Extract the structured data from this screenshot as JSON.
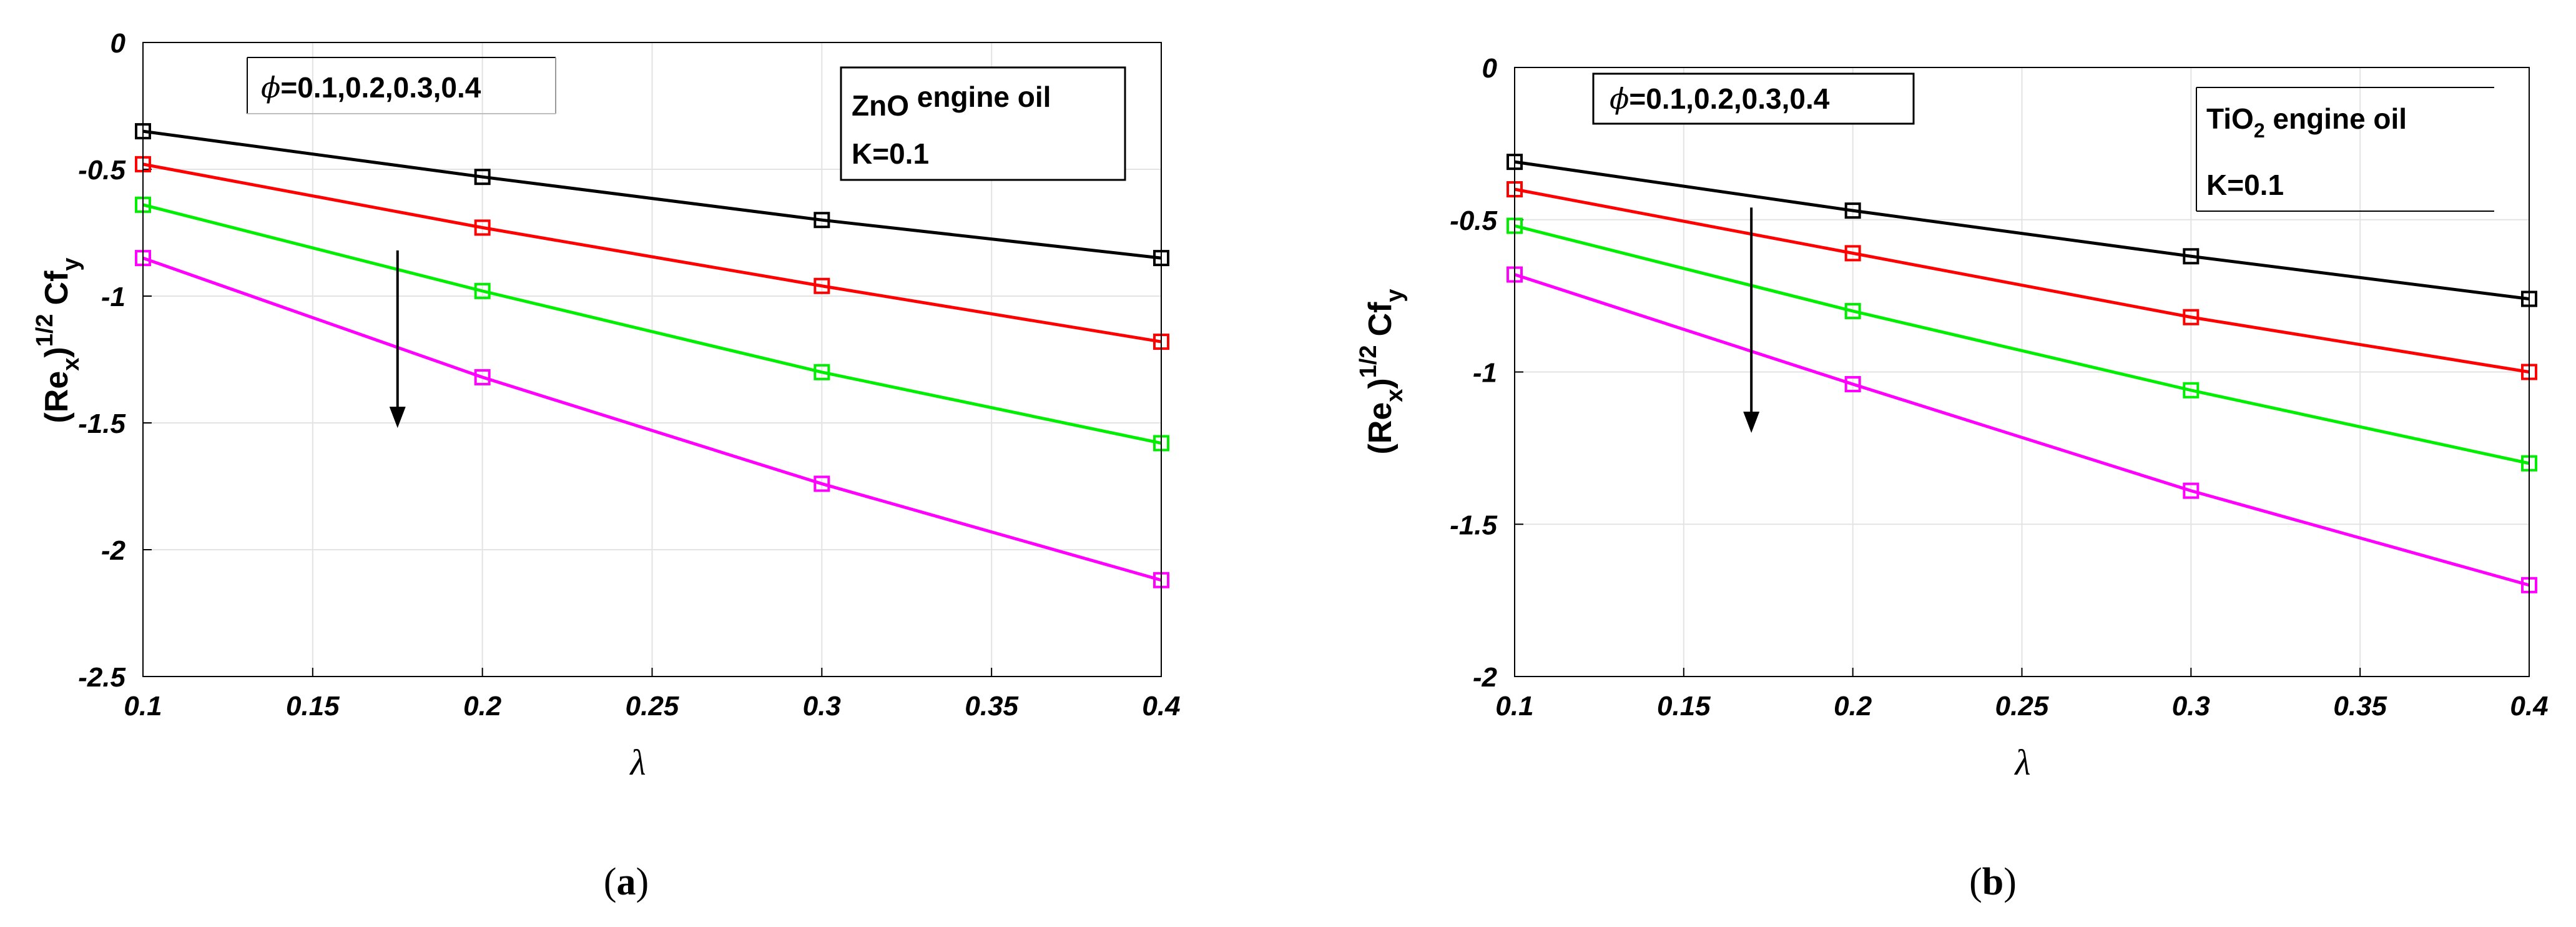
{
  "colors": {
    "series": [
      "#000000",
      "#ff0000",
      "#00ee00",
      "#ff00ff"
    ]
  },
  "chart_data": [
    {
      "type": "line",
      "panel_label": "a",
      "xlabel": "λ",
      "ylabel": "(Re_x)^1/2 Cf_y",
      "ylabel_parts": {
        "open": "(Re",
        "sub1": "x",
        "close": ")",
        "exp": "1/2",
        "cf": "Cf",
        "sub2": "y"
      },
      "x": [
        0.1,
        0.2,
        0.3,
        0.4
      ],
      "xlim": [
        0.1,
        0.4
      ],
      "ylim": [
        -2.5,
        0
      ],
      "xticks": [
        "0.1",
        "0.15",
        "0.2",
        "0.25",
        "0.3",
        "0.35",
        "0.4"
      ],
      "yticks": [
        "0",
        "-0.5",
        "-1",
        "-1.5",
        "-2",
        "-2.5"
      ],
      "arrow": {
        "x": 0.175,
        "y_from": -0.82,
        "y_to": -1.52
      },
      "phi_label": {
        "symbol": "ϕ",
        "text": "=0.1,0.2,0.3,0.4"
      },
      "info": {
        "prefix": "ZnO",
        "sub": "",
        "rest": " engine oil",
        "line2": "K=0.1"
      },
      "series": [
        {
          "name": "ϕ=0.1",
          "values": [
            -0.35,
            -0.53,
            -0.7,
            -0.85
          ]
        },
        {
          "name": "ϕ=0.2",
          "values": [
            -0.48,
            -0.73,
            -0.96,
            -1.18
          ]
        },
        {
          "name": "ϕ=0.3",
          "values": [
            -0.64,
            -0.98,
            -1.3,
            -1.58
          ]
        },
        {
          "name": "ϕ=0.4",
          "values": [
            -0.85,
            -1.32,
            -1.74,
            -2.12
          ]
        }
      ]
    },
    {
      "type": "line",
      "panel_label": "b",
      "xlabel": "λ",
      "ylabel": "(Re_x)^1/2 Cf_y",
      "ylabel_parts": {
        "open": "(Re",
        "sub1": "x",
        "close": ")",
        "exp": "1/2",
        "cf": "Cf",
        "sub2": "y"
      },
      "x": [
        0.1,
        0.2,
        0.3,
        0.4
      ],
      "xlim": [
        0.1,
        0.4
      ],
      "ylim": [
        -2,
        0
      ],
      "xticks": [
        "0.1",
        "0.15",
        "0.2",
        "0.25",
        "0.3",
        "0.35",
        "0.4"
      ],
      "yticks": [
        "0",
        "-0.5",
        "-1",
        "-1.5",
        "-2"
      ],
      "arrow": {
        "x": 0.17,
        "y_from": -0.46,
        "y_to": -1.2
      },
      "phi_label": {
        "symbol": "ϕ",
        "text": "=0.1,0.2,0.3,0.4"
      },
      "info": {
        "prefix": "TiO",
        "sub": "2",
        "rest": " engine oil",
        "line2": "K=0.1"
      },
      "series": [
        {
          "name": "ϕ=0.1",
          "values": [
            -0.31,
            -0.47,
            -0.62,
            -0.76
          ]
        },
        {
          "name": "ϕ=0.2",
          "values": [
            -0.4,
            -0.61,
            -0.82,
            -1.0
          ]
        },
        {
          "name": "ϕ=0.3",
          "values": [
            -0.52,
            -0.8,
            -1.06,
            -1.3
          ]
        },
        {
          "name": "ϕ=0.4",
          "values": [
            -0.68,
            -1.04,
            -1.39,
            -1.7
          ]
        }
      ]
    }
  ]
}
